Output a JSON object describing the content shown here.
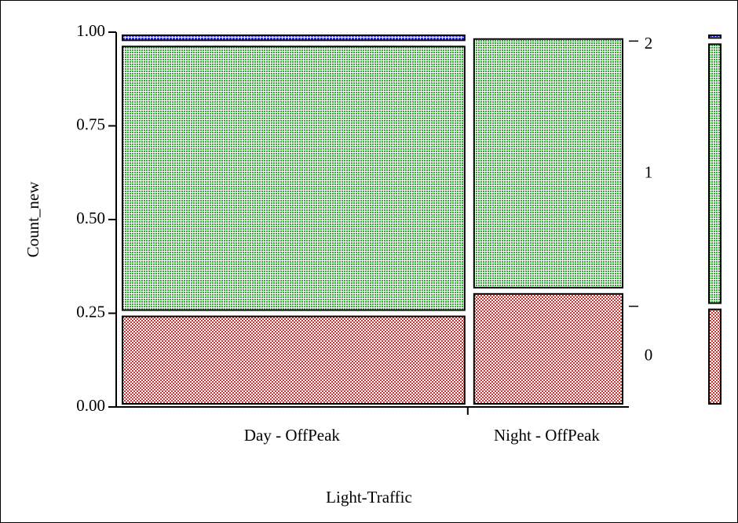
{
  "chart_data": {
    "type": "mosaic",
    "x_label": "Light-Traffic",
    "y_label": "Count_new",
    "categories": [
      "Day - OffPeak",
      "Night - OffPeak"
    ],
    "widths": [
      0.69,
      0.31
    ],
    "series": [
      {
        "name": "0",
        "color": "#cc3333",
        "values": [
          0.25,
          0.31
        ]
      },
      {
        "name": "1",
        "color": "#33aa33",
        "values": [
          0.72,
          0.68
        ]
      },
      {
        "name": "2",
        "color": "#3333cc",
        "values": [
          0.03,
          0.01
        ]
      }
    ],
    "ylim": [
      0,
      1
    ],
    "yticks": [
      {
        "value": 0,
        "label": "0.00"
      },
      {
        "value": 0.25,
        "label": "0.25"
      },
      {
        "value": 0.5,
        "label": "0.50"
      },
      {
        "value": 0.75,
        "label": "0.75"
      },
      {
        "value": 1,
        "label": "1.00"
      }
    ]
  }
}
